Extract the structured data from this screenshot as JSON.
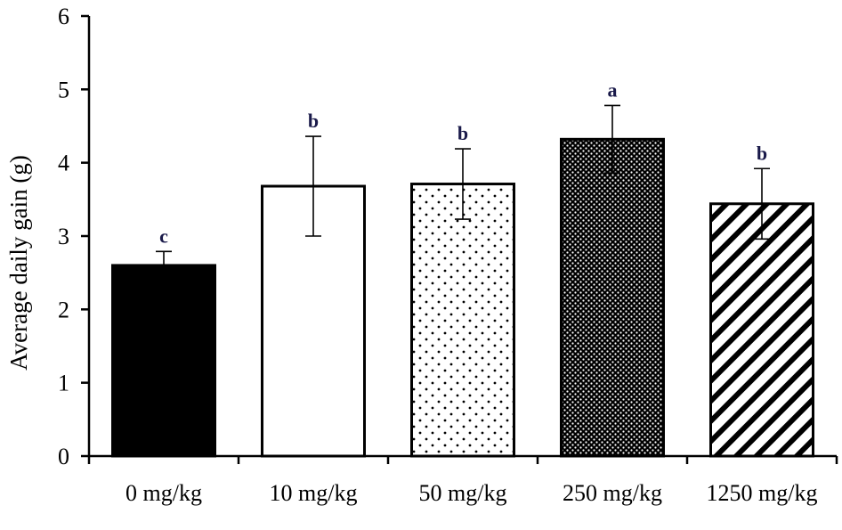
{
  "chart_data": {
    "type": "bar",
    "title": "",
    "xlabel": "",
    "ylabel": "Average daily gain (g)",
    "ylim": [
      0,
      6
    ],
    "yticks": [
      0,
      1,
      2,
      3,
      4,
      5,
      6
    ],
    "categories": [
      "0 mg/kg",
      "10 mg/kg",
      "50 mg/kg",
      "250 mg/kg",
      "1250 mg/kg"
    ],
    "values": [
      2.6,
      3.68,
      3.71,
      4.32,
      3.44
    ],
    "errors": [
      0.19,
      0.68,
      0.48,
      0.46,
      0.48
    ],
    "significance": [
      "c",
      "b",
      "b",
      "a",
      "b"
    ],
    "fills": [
      "solid-black",
      "white",
      "sparse-dots",
      "dense-dots-dark",
      "diagonal-stripes"
    ],
    "grid": false,
    "legend": "none"
  }
}
